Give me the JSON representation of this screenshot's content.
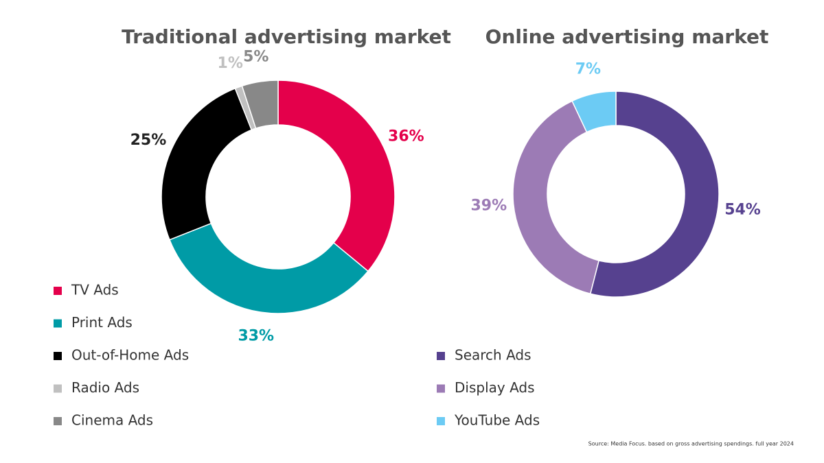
{
  "chart_data": [
    {
      "type": "donut",
      "title": "Traditional advertising market",
      "categories": [
        "TV Ads",
        "Print Ads",
        "Out-of-Home Ads",
        "Radio Ads",
        "Cinema Ads"
      ],
      "values": [
        36,
        33,
        25,
        1,
        5
      ],
      "value_labels": [
        "36%",
        "33%",
        "25%",
        "1%",
        "5%"
      ],
      "colors": [
        "#e4004b",
        "#009ba6",
        "#000000",
        "#c0c0c0",
        "#888888"
      ],
      "legend": "bottom-left"
    },
    {
      "type": "donut",
      "title": "Online advertising market",
      "categories": [
        "Search Ads",
        "Display Ads",
        "YouTube Ads"
      ],
      "values": [
        54,
        39,
        7
      ],
      "value_labels": [
        "54%",
        "39%",
        "7%"
      ],
      "colors": [
        "#56418f",
        "#9c7bb5",
        "#6ccbf4"
      ],
      "legend": "bottom-left"
    }
  ],
  "source": "Source: Media Focus. based on gross advertising spendings. full year 2024"
}
